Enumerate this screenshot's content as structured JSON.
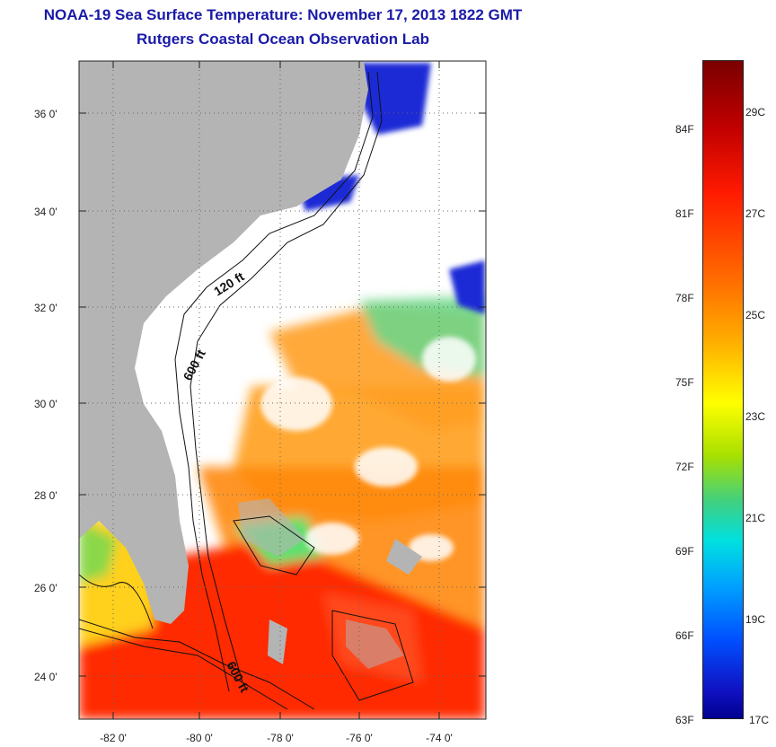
{
  "title": {
    "line1": "NOAA-19 Sea Surface Temperature:  November 17, 2013 1822 GMT",
    "line2": "Rutgers Coastal Ocean Observation Lab"
  },
  "map": {
    "lat_labels": [
      "36 0'",
      "34 0'",
      "32 0'",
      "30 0'",
      "28 0'",
      "26 0'",
      "24 0'"
    ],
    "lon_labels": [
      "-82 0'",
      "-80 0'",
      "-78 0'",
      "-76 0'",
      "-74 0'"
    ],
    "contour_labels": [
      "120 ft",
      "600 ft",
      "600 ft"
    ],
    "colors": {
      "land": "#b4b4b4",
      "cloud": "#ffffff",
      "warm": "#ff2a00",
      "orange": "#ff9a1a",
      "cool": "#1a2ad6"
    }
  },
  "colorbar": {
    "fahrenheit": [
      "84F",
      "81F",
      "78F",
      "75F",
      "72F",
      "69F",
      "66F",
      "63F"
    ],
    "celsius": [
      "29C",
      "27C",
      "25C",
      "23C",
      "21C",
      "19C",
      "17C"
    ]
  }
}
